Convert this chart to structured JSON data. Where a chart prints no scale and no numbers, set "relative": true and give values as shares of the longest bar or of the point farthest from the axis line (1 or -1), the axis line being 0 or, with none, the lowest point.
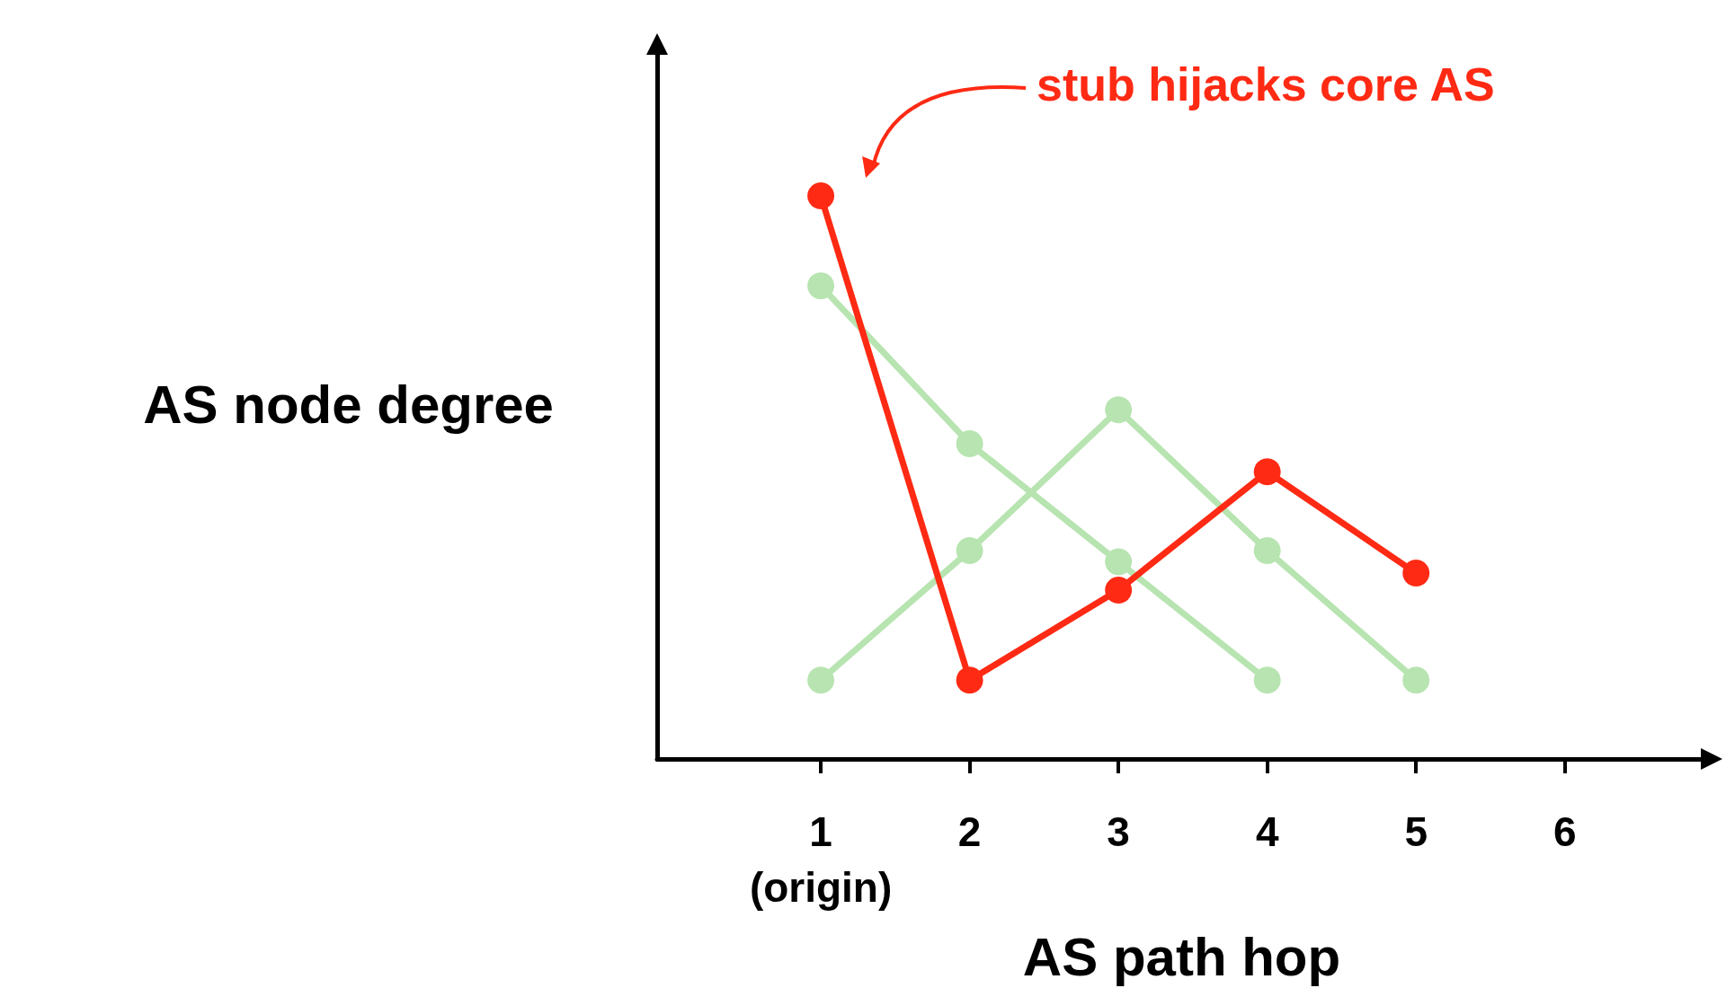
{
  "chart_data": {
    "type": "line",
    "relative": true,
    "xlabel": "AS path hop",
    "ylabel": "AS node degree",
    "categories": [
      "1\n(origin)",
      "2",
      "3",
      "4",
      "5",
      "6"
    ],
    "marker": "circle",
    "line_style": "solid",
    "series": [
      {
        "color": "#b7e4b0",
        "values": [
          0.84,
          0.56,
          0.35,
          0.14,
          null,
          null
        ]
      },
      {
        "color": "#b7e4b0",
        "values": [
          0.14,
          0.37,
          0.62,
          0.37,
          0.14,
          null
        ]
      },
      {
        "color": "#fe2a14",
        "values": [
          1.0,
          0.14,
          0.3,
          0.51,
          0.33,
          null
        ]
      }
    ],
    "annotations": [
      "stub hijacks core AS"
    ]
  }
}
